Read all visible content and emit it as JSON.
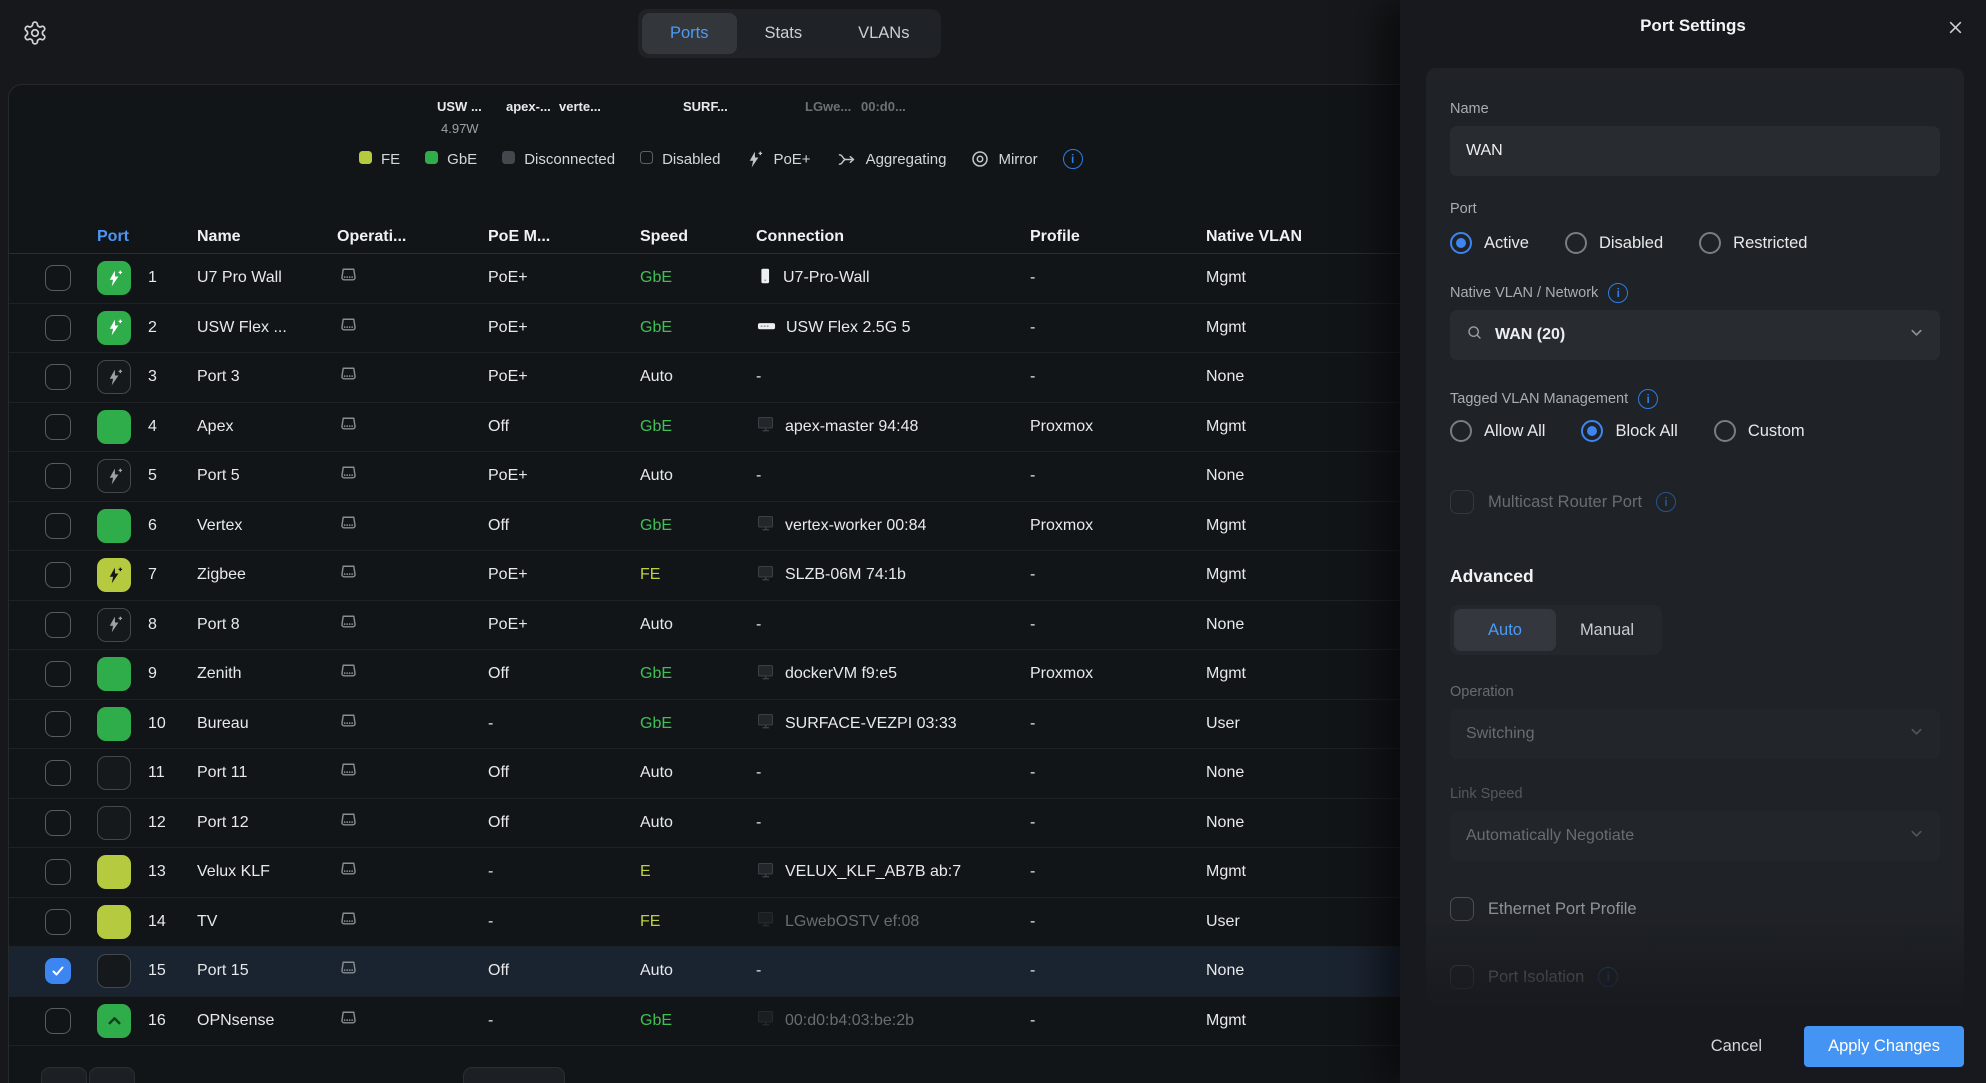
{
  "topbar": {
    "tabs": [
      {
        "label": "Ports",
        "active": true
      },
      {
        "label": "Stats",
        "active": false
      },
      {
        "label": "VLANs",
        "active": false
      }
    ]
  },
  "device_overview": {
    "labels": [
      {
        "text": "USW ...",
        "dim": false
      },
      {
        "text": "apex-...",
        "dim": false
      },
      {
        "text": "verte...",
        "dim": false
      },
      {
        "text": "SURF...",
        "dim": false
      },
      {
        "text": "LGwe...",
        "dim": true
      },
      {
        "text": "00:d0...",
        "dim": true
      }
    ],
    "power_draw": "4.97W"
  },
  "legend": {
    "items": [
      {
        "label": "FE",
        "icon": "fe-swatch"
      },
      {
        "label": "GbE",
        "icon": "gbe-swatch"
      },
      {
        "label": "Disconnected",
        "icon": "disconnected-swatch"
      },
      {
        "label": "Disabled",
        "icon": "disabled-swatch"
      },
      {
        "label": "PoE+",
        "icon": "poe-bolt"
      },
      {
        "label": "Aggregating",
        "icon": "aggregating"
      },
      {
        "label": "Mirror",
        "icon": "mirror"
      }
    ]
  },
  "table": {
    "columns": [
      "Port",
      "Name",
      "Operati...",
      "PoE M...",
      "Speed",
      "Connection",
      "Profile",
      "Native VLAN"
    ],
    "rows": [
      {
        "port": "1",
        "tile": "poe-green",
        "name": "U7 Pro Wall",
        "poe": "PoE+",
        "speed": "GbE",
        "speed_color": "green",
        "conn": "U7-Pro-Wall",
        "conn_icon": "ap",
        "conn_dim": false,
        "profile": "-",
        "vlan": "Mgmt",
        "selected": false,
        "checked": false
      },
      {
        "port": "2",
        "tile": "poe-green",
        "name": "USW Flex ...",
        "poe": "PoE+",
        "speed": "GbE",
        "speed_color": "green",
        "conn": "USW Flex 2.5G 5",
        "conn_icon": "switch",
        "conn_dim": false,
        "profile": "-",
        "vlan": "Mgmt",
        "selected": false,
        "checked": false
      },
      {
        "port": "3",
        "tile": "poe-dark",
        "name": "Port 3",
        "poe": "PoE+",
        "speed": "Auto",
        "speed_color": "white",
        "conn": "-",
        "conn_icon": "none",
        "conn_dim": false,
        "profile": "-",
        "vlan": "None",
        "selected": false,
        "checked": false
      },
      {
        "port": "4",
        "tile": "green",
        "name": "Apex",
        "poe": "Off",
        "speed": "GbE",
        "speed_color": "green",
        "conn": "apex-master 94:48",
        "conn_icon": "host",
        "conn_dim": false,
        "profile": "Proxmox",
        "vlan": "Mgmt",
        "selected": false,
        "checked": false
      },
      {
        "port": "5",
        "tile": "poe-dark",
        "name": "Port 5",
        "poe": "PoE+",
        "speed": "Auto",
        "speed_color": "white",
        "conn": "-",
        "conn_icon": "none",
        "conn_dim": false,
        "profile": "-",
        "vlan": "None",
        "selected": false,
        "checked": false
      },
      {
        "port": "6",
        "tile": "green",
        "name": "Vertex",
        "poe": "Off",
        "speed": "GbE",
        "speed_color": "green",
        "conn": "vertex-worker 00:84",
        "conn_icon": "host",
        "conn_dim": false,
        "profile": "Proxmox",
        "vlan": "Mgmt",
        "selected": false,
        "checked": false
      },
      {
        "port": "7",
        "tile": "poe-yellow",
        "name": "Zigbee",
        "poe": "PoE+",
        "speed": "FE",
        "speed_color": "yellow",
        "conn": "SLZB-06M 74:1b",
        "conn_icon": "host",
        "conn_dim": false,
        "profile": "-",
        "vlan": "Mgmt",
        "selected": false,
        "checked": false
      },
      {
        "port": "8",
        "tile": "poe-dark",
        "name": "Port 8",
        "poe": "PoE+",
        "speed": "Auto",
        "speed_color": "white",
        "conn": "-",
        "conn_icon": "none",
        "conn_dim": false,
        "profile": "-",
        "vlan": "None",
        "selected": false,
        "checked": false
      },
      {
        "port": "9",
        "tile": "green",
        "name": "Zenith",
        "poe": "Off",
        "speed": "GbE",
        "speed_color": "green",
        "conn": "dockerVM f9:e5",
        "conn_icon": "host",
        "conn_dim": false,
        "profile": "Proxmox",
        "vlan": "Mgmt",
        "selected": false,
        "checked": false
      },
      {
        "port": "10",
        "tile": "green",
        "name": "Bureau",
        "poe": "-",
        "speed": "GbE",
        "speed_color": "green",
        "conn": "SURFACE-VEZPI 03:33",
        "conn_icon": "host",
        "conn_dim": false,
        "profile": "-",
        "vlan": "User",
        "selected": false,
        "checked": false
      },
      {
        "port": "11",
        "tile": "dark",
        "name": "Port 11",
        "poe": "Off",
        "speed": "Auto",
        "speed_color": "white",
        "conn": "-",
        "conn_icon": "none",
        "conn_dim": false,
        "profile": "-",
        "vlan": "None",
        "selected": false,
        "checked": false
      },
      {
        "port": "12",
        "tile": "dark",
        "name": "Port 12",
        "poe": "Off",
        "speed": "Auto",
        "speed_color": "white",
        "conn": "-",
        "conn_icon": "none",
        "conn_dim": false,
        "profile": "-",
        "vlan": "None",
        "selected": false,
        "checked": false
      },
      {
        "port": "13",
        "tile": "yellow",
        "name": "Velux KLF",
        "poe": "-",
        "speed": "E",
        "speed_color": "yellow",
        "conn": "VELUX_KLF_AB7B ab:7",
        "conn_icon": "host",
        "conn_dim": false,
        "profile": "-",
        "vlan": "Mgmt",
        "selected": false,
        "checked": false
      },
      {
        "port": "14",
        "tile": "yellow",
        "name": "TV",
        "poe": "-",
        "speed": "FE",
        "speed_color": "yellow",
        "conn": "LGwebOSTV ef:08",
        "conn_icon": "host",
        "conn_dim": true,
        "profile": "-",
        "vlan": "User",
        "selected": false,
        "checked": false
      },
      {
        "port": "15",
        "tile": "dark",
        "name": "Port 15",
        "poe": "Off",
        "speed": "Auto",
        "speed_color": "white",
        "conn": "-",
        "conn_icon": "none",
        "conn_dim": false,
        "profile": "-",
        "vlan": "None",
        "selected": true,
        "checked": true
      },
      {
        "port": "16",
        "tile": "green-uplink",
        "name": "OPNsense",
        "poe": "-",
        "speed": "GbE",
        "speed_color": "green",
        "conn": "00:d0:b4:03:be:2b",
        "conn_icon": "host",
        "conn_dim": true,
        "profile": "-",
        "vlan": "Mgmt",
        "selected": false,
        "checked": false
      }
    ]
  },
  "panel": {
    "title": "Port Settings",
    "name_label": "Name",
    "name_value": "WAN",
    "port_label": "Port",
    "port_options": [
      "Active",
      "Disabled",
      "Restricted"
    ],
    "port_selected": 0,
    "native_vlan_label": "Native VLAN / Network",
    "native_vlan_value": "WAN (20)",
    "tagged_label": "Tagged VLAN Management",
    "tagged_options": [
      "Allow All",
      "Block All",
      "Custom"
    ],
    "tagged_selected": 1,
    "multicast_label": "Multicast Router Port",
    "advanced_label": "Advanced",
    "mode_options": [
      "Auto",
      "Manual"
    ],
    "mode_selected": 0,
    "operation_label": "Operation",
    "operation_value": "Switching",
    "link_speed_label": "Link Speed",
    "link_speed_value": "Automatically Negotiate",
    "ethernet_profile_label": "Ethernet Port Profile",
    "port_isolation_label": "Port Isolation",
    "cancel_label": "Cancel",
    "apply_label": "Apply Changes"
  },
  "colors": {
    "accent_blue": "#3d85f0",
    "poe_green": "#2fad4a",
    "fe_yellow": "#b5ca3e",
    "gbe_text": "#3fc054",
    "fe_text": "#bdd23f",
    "selected_row": "#1a2330",
    "panel_bg": "#17191e",
    "card_bg": "#1f2226"
  }
}
